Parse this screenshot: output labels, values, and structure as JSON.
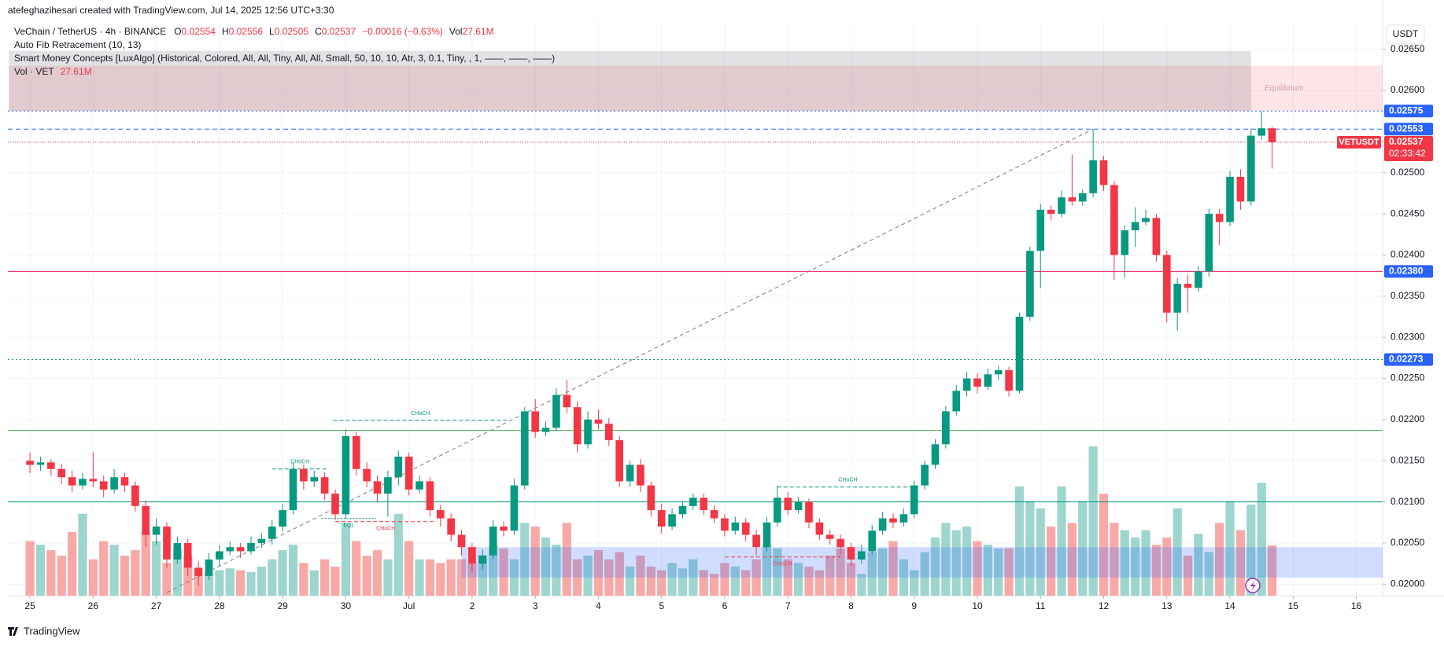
{
  "header": {
    "caption": "atefeghazihesari created with TradingView.com, Jul 14, 2025 12:56 UTC+3:30"
  },
  "chart_data": {
    "type": "candlestick",
    "legend": {
      "symbol": "VeChain / TetherUS · 4h · BINANCE",
      "o": "O",
      "h": "H",
      "l": "L",
      "c": "C",
      "change": "−0.00016 (−0.63%)",
      "vol": "Vol",
      "last_volume_label": "27.61M",
      "vol_indicator": "Vol · VET",
      "indicators": [
        "Auto Fib Retracement (10, 13)",
        "Smart Money Concepts [LuxAlgo] (Historical, Colored, All, All, Tiny, All, All, Small, 50, 10, 10, Atr, 3, 0.1, Tiny, , 1, ——, ——, ——)"
      ]
    },
    "up_color": "#089981",
    "down_color": "#f23645",
    "volume_up_color": "#9ed6cf",
    "volume_down_color": "#f7a9a8",
    "candles": [
      [
        0.0215,
        0.0216,
        0.02135,
        0.02145
      ],
      [
        0.02145,
        0.02155,
        0.02138,
        0.02148
      ],
      [
        0.02148,
        0.02152,
        0.02132,
        0.0214
      ],
      [
        0.0214,
        0.02146,
        0.02122,
        0.0213
      ],
      [
        0.0213,
        0.02138,
        0.02112,
        0.0212
      ],
      [
        0.0212,
        0.02135,
        0.02115,
        0.02128
      ],
      [
        0.02128,
        0.0216,
        0.02118,
        0.02125
      ],
      [
        0.02125,
        0.02132,
        0.02105,
        0.02115
      ],
      [
        0.02115,
        0.0214,
        0.0211,
        0.0213
      ],
      [
        0.0213,
        0.02135,
        0.02112,
        0.0212
      ],
      [
        0.0212,
        0.02125,
        0.02088,
        0.02095
      ],
      [
        0.02095,
        0.02102,
        0.02045,
        0.0206
      ],
      [
        0.0206,
        0.0208,
        0.02048,
        0.0207
      ],
      [
        0.0207,
        0.02075,
        0.0202,
        0.0203
      ],
      [
        0.0203,
        0.02058,
        0.02025,
        0.0205
      ],
      [
        0.0205,
        0.02055,
        0.0201,
        0.0202
      ],
      [
        0.0202,
        0.02028,
        0.01998,
        0.0201
      ],
      [
        0.0201,
        0.02038,
        0.02005,
        0.0203
      ],
      [
        0.0203,
        0.02048,
        0.02022,
        0.0204
      ],
      [
        0.0204,
        0.02052,
        0.02035,
        0.02045
      ],
      [
        0.02045,
        0.0205,
        0.02032,
        0.0204
      ],
      [
        0.0204,
        0.02058,
        0.02036,
        0.0205
      ],
      [
        0.0205,
        0.02062,
        0.02044,
        0.02055
      ],
      [
        0.02055,
        0.02078,
        0.02048,
        0.0207
      ],
      [
        0.0207,
        0.02098,
        0.02064,
        0.0209
      ],
      [
        0.0209,
        0.02148,
        0.02085,
        0.0214
      ],
      [
        0.0214,
        0.02145,
        0.02115,
        0.02125
      ],
      [
        0.02125,
        0.02138,
        0.02118,
        0.0213
      ],
      [
        0.0213,
        0.02136,
        0.02102,
        0.0211
      ],
      [
        0.0211,
        0.02115,
        0.02078,
        0.02085
      ],
      [
        0.02085,
        0.02188,
        0.0208,
        0.0218
      ],
      [
        0.0218,
        0.02185,
        0.02132,
        0.0214
      ],
      [
        0.0214,
        0.02148,
        0.02118,
        0.02125
      ],
      [
        0.02125,
        0.02132,
        0.021,
        0.0211
      ],
      [
        0.0211,
        0.02138,
        0.02082,
        0.0213
      ],
      [
        0.0213,
        0.02162,
        0.0212,
        0.02155
      ],
      [
        0.02155,
        0.0216,
        0.02108,
        0.02115
      ],
      [
        0.02115,
        0.02132,
        0.0211,
        0.02125
      ],
      [
        0.02125,
        0.0213,
        0.02082,
        0.0209
      ],
      [
        0.0209,
        0.02096,
        0.0207,
        0.0208
      ],
      [
        0.0208,
        0.02086,
        0.02052,
        0.0206
      ],
      [
        0.0206,
        0.02066,
        0.02035,
        0.02045
      ],
      [
        0.02045,
        0.0205,
        0.02015,
        0.02025
      ],
      [
        0.02025,
        0.02042,
        0.02018,
        0.02035
      ],
      [
        0.02035,
        0.02078,
        0.0203,
        0.0207
      ],
      [
        0.0207,
        0.02076,
        0.02058,
        0.02065
      ],
      [
        0.02065,
        0.02128,
        0.0206,
        0.0212
      ],
      [
        0.0212,
        0.02215,
        0.02115,
        0.0221
      ],
      [
        0.0221,
        0.02225,
        0.02178,
        0.02185
      ],
      [
        0.02185,
        0.02198,
        0.0218,
        0.0219
      ],
      [
        0.0219,
        0.02238,
        0.02186,
        0.0223
      ],
      [
        0.0223,
        0.02248,
        0.02208,
        0.02215
      ],
      [
        0.02215,
        0.02222,
        0.0216,
        0.0217
      ],
      [
        0.0217,
        0.0221,
        0.02165,
        0.022
      ],
      [
        0.022,
        0.02212,
        0.02188,
        0.02195
      ],
      [
        0.02195,
        0.02202,
        0.02168,
        0.02175
      ],
      [
        0.02175,
        0.0218,
        0.02118,
        0.02125
      ],
      [
        0.02125,
        0.0215,
        0.02118,
        0.02145
      ],
      [
        0.02145,
        0.02152,
        0.02112,
        0.0212
      ],
      [
        0.0212,
        0.02125,
        0.02082,
        0.0209
      ],
      [
        0.0209,
        0.02098,
        0.02062,
        0.0207
      ],
      [
        0.0207,
        0.02092,
        0.02066,
        0.02085
      ],
      [
        0.02085,
        0.021,
        0.0208,
        0.02095
      ],
      [
        0.02095,
        0.0211,
        0.0209,
        0.02105
      ],
      [
        0.02105,
        0.0211,
        0.02084,
        0.0209
      ],
      [
        0.0209,
        0.02096,
        0.02074,
        0.0208
      ],
      [
        0.0208,
        0.02085,
        0.02058,
        0.02065
      ],
      [
        0.02065,
        0.02082,
        0.0206,
        0.02075
      ],
      [
        0.02075,
        0.0208,
        0.02052,
        0.0206
      ],
      [
        0.0206,
        0.02066,
        0.02035,
        0.02045
      ],
      [
        0.02045,
        0.02082,
        0.0204,
        0.02075
      ],
      [
        0.02075,
        0.0212,
        0.0207,
        0.02105
      ],
      [
        0.02105,
        0.02112,
        0.02084,
        0.0209
      ],
      [
        0.0209,
        0.02106,
        0.02086,
        0.021
      ],
      [
        0.021,
        0.02104,
        0.02068,
        0.02075
      ],
      [
        0.02075,
        0.0208,
        0.02054,
        0.0206
      ],
      [
        0.0206,
        0.02066,
        0.02048,
        0.02055
      ],
      [
        0.02055,
        0.0206,
        0.02036,
        0.02045
      ],
      [
        0.02045,
        0.0205,
        0.02022,
        0.0203
      ],
      [
        0.0203,
        0.02048,
        0.02025,
        0.0204
      ],
      [
        0.0204,
        0.02072,
        0.02036,
        0.02065
      ],
      [
        0.02065,
        0.02088,
        0.0206,
        0.0208
      ],
      [
        0.0208,
        0.02086,
        0.02068,
        0.02075
      ],
      [
        0.02075,
        0.02092,
        0.0207,
        0.02085
      ],
      [
        0.02085,
        0.02126,
        0.0208,
        0.0212
      ],
      [
        0.0212,
        0.0215,
        0.02115,
        0.02145
      ],
      [
        0.02145,
        0.02176,
        0.0214,
        0.0217
      ],
      [
        0.0217,
        0.02216,
        0.02165,
        0.0221
      ],
      [
        0.0221,
        0.02242,
        0.02205,
        0.02235
      ],
      [
        0.02235,
        0.02258,
        0.02228,
        0.0225
      ],
      [
        0.0225,
        0.02256,
        0.02232,
        0.0224
      ],
      [
        0.0224,
        0.02262,
        0.02236,
        0.02255
      ],
      [
        0.02255,
        0.02265,
        0.02248,
        0.0226
      ],
      [
        0.0226,
        0.02264,
        0.02228,
        0.02235
      ],
      [
        0.02235,
        0.0233,
        0.02232,
        0.02325
      ],
      [
        0.02325,
        0.0241,
        0.0232,
        0.02405
      ],
      [
        0.02405,
        0.02462,
        0.0236,
        0.02455
      ],
      [
        0.02455,
        0.0246,
        0.02442,
        0.0245
      ],
      [
        0.0245,
        0.02478,
        0.02446,
        0.0247
      ],
      [
        0.0247,
        0.02522,
        0.0246,
        0.02465
      ],
      [
        0.02465,
        0.0248,
        0.0246,
        0.02475
      ],
      [
        0.02475,
        0.02553,
        0.0247,
        0.02515
      ],
      [
        0.02515,
        0.0252,
        0.02478,
        0.02485
      ],
      [
        0.02485,
        0.0249,
        0.0237,
        0.024
      ],
      [
        0.024,
        0.02436,
        0.02372,
        0.0243
      ],
      [
        0.0243,
        0.02458,
        0.0241,
        0.0244
      ],
      [
        0.0244,
        0.02455,
        0.02436,
        0.02445
      ],
      [
        0.02445,
        0.0245,
        0.02392,
        0.024
      ],
      [
        0.024,
        0.02405,
        0.02318,
        0.0233
      ],
      [
        0.0233,
        0.02372,
        0.02308,
        0.02365
      ],
      [
        0.02365,
        0.02376,
        0.0233,
        0.0236
      ],
      [
        0.0236,
        0.02386,
        0.02355,
        0.0238
      ],
      [
        0.0238,
        0.02456,
        0.02374,
        0.0245
      ],
      [
        0.0245,
        0.02456,
        0.02412,
        0.0244
      ],
      [
        0.0244,
        0.02502,
        0.02435,
        0.02495
      ],
      [
        0.02495,
        0.02504,
        0.02455,
        0.02465
      ],
      [
        0.02465,
        0.02553,
        0.0246,
        0.02545
      ],
      [
        0.02545,
        0.02575,
        0.0254,
        0.02554
      ],
      [
        0.02554,
        0.02556,
        0.02505,
        0.02537
      ]
    ],
    "volumes": [
      30,
      28,
      25,
      22,
      35,
      45,
      20,
      30,
      28,
      22,
      25,
      35,
      30,
      18,
      25,
      22,
      15,
      12,
      14,
      15,
      14,
      13,
      16,
      20,
      25,
      28,
      18,
      14,
      20,
      16,
      40,
      30,
      22,
      25,
      20,
      45,
      30,
      20,
      20,
      18,
      20,
      20,
      18,
      22,
      28,
      26,
      20,
      40,
      38,
      32,
      28,
      40,
      20,
      22,
      25,
      20,
      24,
      16,
      22,
      16,
      14,
      18,
      15,
      20,
      14,
      12,
      18,
      16,
      14,
      20,
      28,
      26,
      20,
      18,
      16,
      14,
      22,
      26,
      18,
      12,
      24,
      26,
      30,
      20,
      14,
      24,
      32,
      40,
      36,
      38,
      30,
      28,
      26,
      26,
      60,
      52,
      48,
      38,
      60,
      40,
      52,
      82,
      56,
      40,
      36,
      32,
      36,
      28,
      32,
      48,
      22,
      34,
      24,
      40,
      52,
      36,
      50,
      62,
      27.61
    ],
    "currency": "USDT",
    "ylim": [
      0.01986,
      0.02685
    ],
    "yticks": [
      {
        "value": 0.02,
        "label": "0.02000"
      },
      {
        "value": 0.0205,
        "label": "0.02050"
      },
      {
        "value": 0.021,
        "label": "0.02100"
      },
      {
        "value": 0.0215,
        "label": "0.02150"
      },
      {
        "value": 0.022,
        "label": "0.02200"
      },
      {
        "value": 0.0225,
        "label": "0.02250"
      },
      {
        "value": 0.023,
        "label": "0.02300"
      },
      {
        "value": 0.0235,
        "label": "0.02350"
      },
      {
        "value": 0.024,
        "label": "0.02400"
      },
      {
        "value": 0.0245,
        "label": "0.02450"
      },
      {
        "value": 0.025,
        "label": "0.02500"
      },
      {
        "value": 0.026,
        "label": "0.02600"
      },
      {
        "value": 0.0265,
        "label": "0.02650"
      }
    ],
    "xlim": [
      -2.1,
      128.5
    ],
    "xticks": [
      {
        "value": 0,
        "label": "25"
      },
      {
        "value": 6,
        "label": "26"
      },
      {
        "value": 12,
        "label": "27"
      },
      {
        "value": 18,
        "label": "28"
      },
      {
        "value": 24,
        "label": "29"
      },
      {
        "value": 30,
        "label": "30"
      },
      {
        "value": 36,
        "label": "Jul"
      },
      {
        "value": 42,
        "label": "2"
      },
      {
        "value": 48,
        "label": "3"
      },
      {
        "value": 54,
        "label": "4"
      },
      {
        "value": 60,
        "label": "5"
      },
      {
        "value": 66,
        "label": "6"
      },
      {
        "value": 72,
        "label": "7"
      },
      {
        "value": 78,
        "label": "8"
      },
      {
        "value": 84,
        "label": "9"
      },
      {
        "value": 90,
        "label": "10"
      },
      {
        "value": 96,
        "label": "11"
      },
      {
        "value": 102,
        "label": "12"
      },
      {
        "value": 108,
        "label": "13"
      },
      {
        "value": 114,
        "label": "14"
      },
      {
        "value": 120,
        "label": "15"
      },
      {
        "value": 126,
        "label": "16"
      }
    ],
    "grid": true,
    "badge_color": "#2962ff",
    "price_lines": [
      {
        "value": 0.02575,
        "label": "0.02575",
        "color": "#2962ff",
        "style": "dotted"
      },
      {
        "value": 0.02553,
        "label": "0.02553",
        "color": "#2962ff",
        "style": "dashed"
      },
      {
        "value": 0.0238,
        "label": "0.02380",
        "color": "#e91e63",
        "style": "solid"
      },
      {
        "value": 0.02273,
        "label": "0.02273",
        "color": "#089981",
        "style": "dotted"
      },
      {
        "value": 0.02187,
        "color": "#4caf50",
        "style": "solid"
      },
      {
        "value": 0.021,
        "color": "#089981",
        "style": "solid"
      }
    ],
    "last_price": {
      "symbol": "VETUSDT",
      "countdown": "02:33:42"
    },
    "zones": [
      {
        "x": [
          -2,
          116
        ],
        "ylim": [
          0.02575,
          0.02648
        ],
        "color": "rgba(120,123,134,0.22)"
      },
      {
        "x": [
          -2,
          128.5
        ],
        "ylim": [
          0.02575,
          0.0263
        ],
        "color": "rgba(242,54,69,0.13)",
        "label": "Equilibrium"
      },
      {
        "x": [
          41,
          128.5
        ],
        "ylim": [
          0.02008,
          0.02045
        ],
        "color": "rgba(41,98,255,0.22)"
      }
    ],
    "structures": [
      {
        "label": "CHoCH",
        "x": [
          23,
          28.3
        ],
        "y": 0.0214,
        "color": "#089981",
        "side": "above"
      },
      {
        "label": "CHoCH",
        "x": [
          28.8,
          45.4
        ],
        "y": 0.02199,
        "color": "#089981",
        "side": "above"
      },
      {
        "label": "CHoCH",
        "x": [
          71,
          84.4
        ],
        "y": 0.02118,
        "color": "#089981",
        "side": "above"
      },
      {
        "label": "CHoCH",
        "x": [
          29,
          38.6
        ],
        "y": 0.02076,
        "color": "#f23645",
        "side": "below"
      },
      {
        "label": "CHoCH",
        "x": [
          66,
          77
        ],
        "y": 0.02033,
        "color": "#f23645",
        "side": "below"
      },
      {
        "label": "EQL",
        "x": [
          27.7,
          32.9
        ],
        "y": 0.0208,
        "color": "#089981",
        "side": "below"
      }
    ],
    "fib_line": {
      "x": [
        13,
        101
      ],
      "y": [
        0.0199,
        0.02553
      ]
    }
  },
  "footer": {
    "brand": "TradingView"
  }
}
